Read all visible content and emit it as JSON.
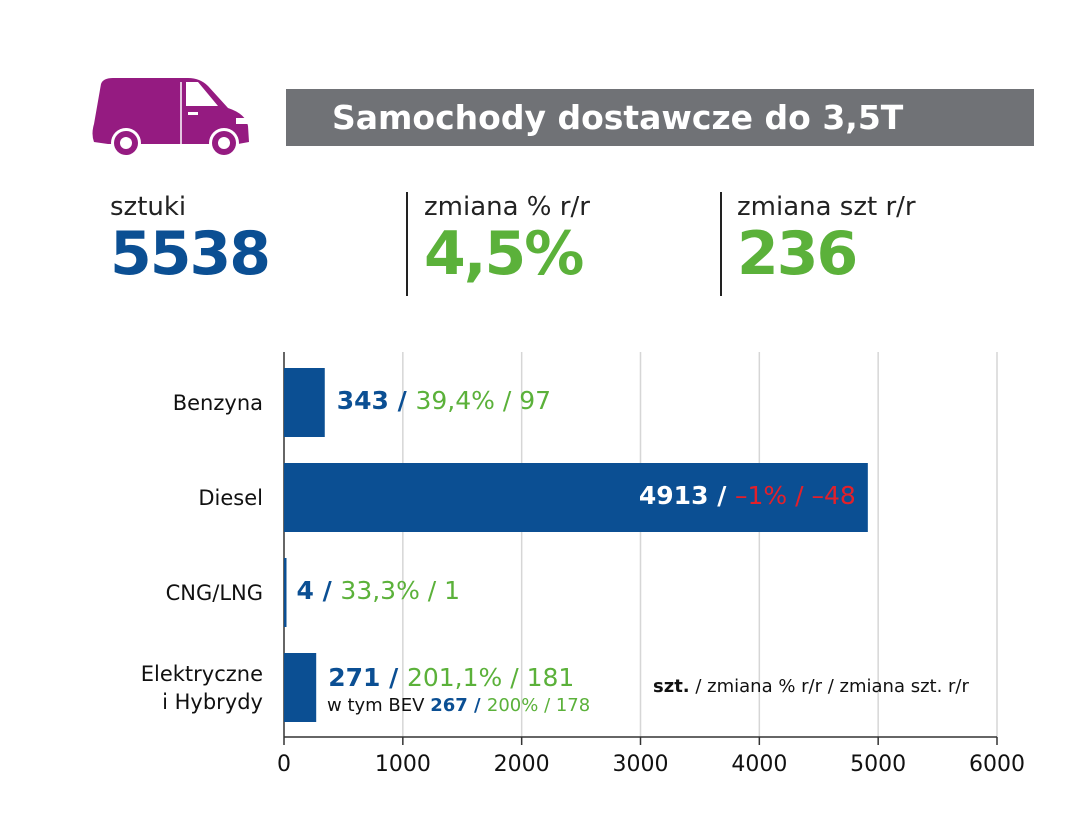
{
  "header": {
    "title": "Samochody dostawcze do 3,5T",
    "icon": "van-icon",
    "icon_color": "#951b81"
  },
  "kpis": [
    {
      "label": "sztuki",
      "value": "5538",
      "color": "#0b4f93"
    },
    {
      "label": "zmiana % r/r",
      "value": "4,5%",
      "color": "#5bb13a"
    },
    {
      "label": "zmiana szt r/r",
      "value": "236",
      "color": "#5bb13a"
    }
  ],
  "chart_data": {
    "type": "bar",
    "orientation": "horizontal",
    "categories": [
      "Benzyna",
      "Diesel",
      "CNG/LNG",
      "Elektryczne i Hybrydy"
    ],
    "category_lines": [
      [
        "Benzyna"
      ],
      [
        "Diesel"
      ],
      [
        "CNG/LNG"
      ],
      [
        "Elektryczne",
        "i Hybrydy"
      ]
    ],
    "values": [
      343,
      4913,
      4,
      271
    ],
    "pct_change": [
      "39,4%",
      "–1%",
      "33,3%",
      "201,1%"
    ],
    "unit_change": [
      "97",
      "–48",
      "1",
      "181"
    ],
    "bev": {
      "prefix": "w tym BEV",
      "value": "267",
      "pct": "200%",
      "units": "178"
    },
    "legend_note": {
      "bold": "szt.",
      "rest": " / zmiana % r/r / zmiana szt. r/r"
    },
    "xlim": [
      0,
      6000
    ],
    "xticks": [
      0,
      1000,
      2000,
      3000,
      4000,
      5000,
      6000
    ],
    "grid": true,
    "colors": {
      "bar": "#0b4f93",
      "positive": "#5bb13a",
      "negative": "#e3202a"
    }
  }
}
